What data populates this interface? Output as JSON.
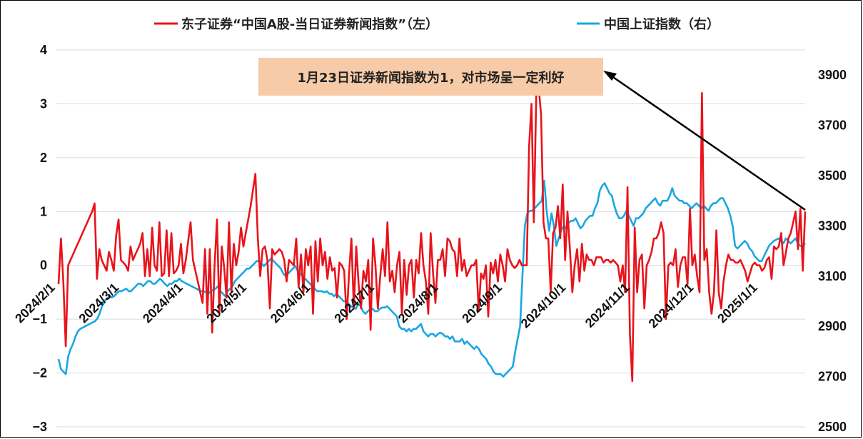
{
  "chart_data": {
    "type": "line",
    "legend": [
      {
        "name": "东子证券“中国A股-当日证券新闻指数”（左）",
        "color": "#e8141b"
      },
      {
        "name": "中国上证指数（右）",
        "color": "#1aa7e0"
      }
    ],
    "left_axis": {
      "ylim": [
        -3,
        4
      ],
      "ticks": [
        "4",
        "3",
        "2",
        "1",
        "0",
        "−1",
        "−2",
        "−3"
      ]
    },
    "right_axis": {
      "ylim": [
        2500,
        4000
      ],
      "ticks": [
        "3900",
        "3700",
        "3500",
        "3300",
        "3100",
        "2900",
        "2700",
        "2500"
      ]
    },
    "x_ticks": [
      "2024/2/1",
      "2024/3/1",
      "2024/4/1",
      "2024/5/1",
      "2024/6/1",
      "2024/7/1",
      "2024/8/1",
      "2024/9/1",
      "2024/10/1",
      "2024/11/1",
      "2024/12/1",
      "2025/1/1"
    ],
    "annotation": "1月23日证券新闻指数为1，对市场呈一定利好",
    "series": [
      {
        "name": "东子证券“中国A股-当日证券新闻指数”（左）",
        "axis": "left",
        "color": "#e8141b",
        "values": [
          -0.35,
          0.5,
          -0.3,
          -1.5,
          0.0,
          0.1,
          0.2,
          0.3,
          0.4,
          0.5,
          0.6,
          0.7,
          0.8,
          0.9,
          1.0,
          1.15,
          -0.25,
          0.3,
          0.1,
          0.0,
          -0.1,
          0.25,
          0.1,
          -0.1,
          0.55,
          0.85,
          0.1,
          0.05,
          0.0,
          -0.1,
          0.35,
          0.1,
          0.2,
          0.3,
          0.4,
          0.6,
          -0.2,
          0.3,
          -0.2,
          0.7,
          0.0,
          -0.1,
          0.8,
          -0.2,
          -0.15,
          0.65,
          -0.2,
          0.6,
          -0.15,
          -0.1,
          0.0,
          0.4,
          -0.15,
          0.1,
          0.45,
          0.8,
          0.1,
          -0.1,
          -0.3,
          -0.5,
          -0.7,
          0.3,
          -0.9,
          0.3,
          -1.25,
          0.0,
          0.85,
          -0.9,
          0.35,
          -0.05,
          -0.6,
          0.8,
          -0.5,
          0.4,
          0.0,
          0.25,
          0.7,
          0.35,
          0.6,
          0.85,
          1.1,
          1.4,
          1.7,
          0.5,
          -0.2,
          0.3,
          0.35,
          0.1,
          -0.8,
          0.3,
          0.2,
          0.25,
          0.3,
          0.25,
          0.1,
          -0.3,
          0.1,
          0.05,
          0.0,
          0.5,
          -0.4,
          0.2,
          -0.5,
          0.3,
          0.0,
          0.35,
          -0.9,
          0.45,
          -0.3,
          0.5,
          0.0,
          0.25,
          -0.25,
          0.15,
          -0.1,
          -0.05,
          -0.6,
          0.05,
          0.0,
          -0.1,
          -1.0,
          -0.15,
          0.5,
          -0.8,
          0.35,
          -0.35,
          -0.8,
          -0.1,
          -0.3,
          0.1,
          -1.2,
          0.5,
          0.0,
          -0.8,
          -0.2,
          0.3,
          -0.2,
          0.8,
          -0.3,
          -0.1,
          -0.5,
          0.0,
          0.25,
          -0.9,
          0.1,
          -0.55,
          0.0,
          0.1,
          -0.6,
          0.1,
          -0.15,
          0.6,
          0.0,
          -0.3,
          -0.9,
          0.6,
          -0.15,
          -0.7,
          0.1,
          0.1,
          0.3,
          -0.2,
          0.5,
          0.45,
          0.3,
          0.25,
          -0.2,
          0.5,
          -0.1,
          0.1,
          -0.2,
          -0.1,
          0.0,
          0.0,
          0.1,
          -0.85,
          -0.15,
          -0.25,
          0.0,
          -0.95,
          0.05,
          -0.15,
          0.1,
          -0.3,
          0.2,
          0.0,
          -0.3,
          0.3,
          0.1,
          0.0,
          -0.05,
          0.0,
          0.1,
          0.0,
          0.0,
          0.0,
          2.2,
          3.0,
          0.8,
          3.2,
          3.3,
          2.8,
          0.8,
          0.5,
          0.5,
          -0.5,
          0.6,
          0.7,
          1.1,
          0.5,
          1.5,
          0.1,
          1.0,
          0.3,
          -0.5,
          0.0,
          0.3,
          -0.3,
          0.4,
          -0.1,
          0.2,
          0.1,
          0.1,
          0.0,
          0.15,
          0.15,
          0.15,
          0.05,
          0.1,
          0.1,
          0.05,
          0.1,
          0.05,
          0.0,
          -0.3,
          0.0,
          -0.5,
          1.45,
          -1.3,
          -2.15,
          0.7,
          -0.5,
          0.1,
          0.2,
          -0.8,
          0.0,
          0.1,
          0.25,
          0.5,
          0.5,
          0.6,
          0.8,
          0.6,
          -1.0,
          0.0,
          0.05,
          0.0,
          0.3,
          -0.4,
          0.0,
          0.15,
          0.15,
          -0.35,
          1.05,
          0.0,
          0.2,
          -0.2,
          -0.5,
          3.2,
          0.1,
          0.3,
          -0.5,
          -0.9,
          -0.5,
          0.65,
          -0.5,
          -0.8,
          -0.3,
          0.0,
          0.2,
          0.1,
          0.1,
          0.05,
          0.05,
          0.1,
          0.0,
          -0.1,
          -0.3,
          -0.15,
          0.0,
          0.05,
          0.0,
          0.0,
          -0.1,
          -0.05,
          0.1,
          0.15,
          -0.25,
          0.35,
          0.3,
          0.35,
          0.6,
          0.0,
          0.25,
          0.5,
          0.6,
          0.8,
          1.0,
          0.3,
          1.05,
          -0.1,
          1.0
        ]
      },
      {
        "name": "中国上证指数（右）",
        "axis": "right",
        "color": "#1aa7e0",
        "values": [
          2770,
          2730,
          2720,
          2710,
          2780,
          2810,
          2830,
          2860,
          2880,
          2890,
          2895,
          2900,
          2905,
          2910,
          2915,
          2920,
          2930,
          2950,
          2980,
          3000,
          3010,
          3020,
          3015,
          3020,
          3030,
          3040,
          3040,
          3045,
          3050,
          3040,
          3040,
          3050,
          3060,
          3070,
          3070,
          3060,
          3070,
          3080,
          3080,
          3070,
          3070,
          3080,
          3090,
          3080,
          3070,
          3060,
          3070,
          3070,
          3080,
          3080,
          3090,
          3080,
          3075,
          3070,
          3065,
          3060,
          3055,
          3050,
          3045,
          3040,
          3040,
          3035,
          3030,
          3040,
          3045,
          3050,
          3060,
          3040,
          3030,
          3020,
          3040,
          3050,
          3060,
          3080,
          3090,
          3100,
          3110,
          3120,
          3130,
          3130,
          3140,
          3150,
          3160,
          3160,
          3150,
          3140,
          3150,
          3160,
          3170,
          3160,
          3150,
          3140,
          3130,
          3110,
          3100,
          3110,
          3120,
          3130,
          3140,
          3120,
          3110,
          3100,
          3090,
          3080,
          3070,
          3060,
          3050,
          3040,
          3040,
          3040,
          3035,
          3040,
          3030,
          3030,
          3020,
          3030,
          3020,
          3010,
          3000,
          3000,
          2990,
          2980,
          2975,
          2970,
          2990,
          2980,
          2960,
          2950,
          2960,
          2970,
          2970,
          2960,
          2960,
          2970,
          2975,
          2975,
          2980,
          2970,
          2960,
          2950,
          2940,
          2900,
          2890,
          2890,
          2880,
          2890,
          2880,
          2890,
          2890,
          2900,
          2910,
          2880,
          2870,
          2860,
          2870,
          2870,
          2860,
          2870,
          2875,
          2870,
          2860,
          2860,
          2850,
          2860,
          2840,
          2840,
          2840,
          2850,
          2830,
          2840,
          2830,
          2820,
          2810,
          2820,
          2810,
          2790,
          2780,
          2770,
          2750,
          2740,
          2720,
          2710,
          2710,
          2710,
          2700,
          2710,
          2720,
          2730,
          2740,
          2800,
          2850,
          2900,
          3100,
          3300,
          3350,
          3360,
          3360,
          3370,
          3380,
          3390,
          3400,
          3480,
          3360,
          3280,
          3350,
          3300,
          3220,
          3250,
          3280,
          3300,
          3290,
          3310,
          3320,
          3320,
          3330,
          3310,
          3290,
          3300,
          3320,
          3330,
          3340,
          3340,
          3370,
          3390,
          3440,
          3460,
          3470,
          3450,
          3430,
          3420,
          3380,
          3350,
          3330,
          3330,
          3340,
          3360,
          3340,
          3320,
          3300,
          3330,
          3330,
          3340,
          3350,
          3370,
          3380,
          3390,
          3400,
          3410,
          3390,
          3380,
          3400,
          3400,
          3400,
          3420,
          3450,
          3420,
          3410,
          3400,
          3400,
          3390,
          3390,
          3380,
          3370,
          3380,
          3390,
          3380,
          3370,
          3380,
          3370,
          3360,
          3380,
          3390,
          3390,
          3400,
          3410,
          3410,
          3390,
          3370,
          3340,
          3300,
          3220,
          3210,
          3220,
          3230,
          3240,
          3230,
          3210,
          3200,
          3180,
          3170,
          3160,
          3160,
          3180,
          3200,
          3220,
          3230,
          3240,
          3245,
          3250,
          3240,
          3230,
          3250,
          3240,
          3230,
          3240,
          3250,
          3230,
          3220,
          3220,
          3230
        ]
      }
    ]
  }
}
